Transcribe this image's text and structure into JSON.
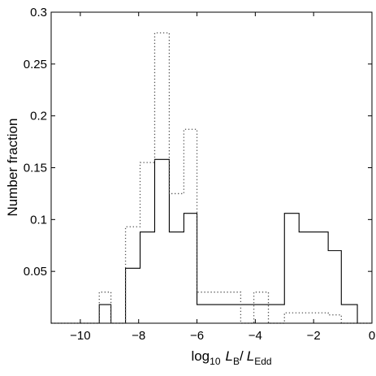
{
  "chart_data": {
    "type": "histogram",
    "xlabel": {
      "prefix": "log",
      "prefix_sub": "10",
      "var1": "L",
      "var1_sub": "B",
      "slash": "/",
      "var2": "L",
      "var2_sub": "Edd"
    },
    "ylabel": "Number fraction",
    "xlim": [
      -11,
      0
    ],
    "ylim": [
      0,
      0.3
    ],
    "xticks": [
      {
        "value": -10,
        "label": "−10"
      },
      {
        "value": -8,
        "label": "−8"
      },
      {
        "value": -6,
        "label": "−6"
      },
      {
        "value": -4,
        "label": "−4"
      },
      {
        "value": -2,
        "label": "−2"
      },
      {
        "value": 0,
        "label": "0"
      }
    ],
    "yticks": [
      {
        "value": 0.05,
        "label": "0.05"
      },
      {
        "value": 0.1,
        "label": "0.1"
      },
      {
        "value": 0.15,
        "label": "0.15"
      },
      {
        "value": 0.2,
        "label": "0.2"
      },
      {
        "value": 0.25,
        "label": "0.25"
      },
      {
        "value": 0.3,
        "label": "0.3"
      }
    ],
    "series": [
      {
        "style": "solid",
        "color": "#000000",
        "edges": [
          -11.0,
          -9.35,
          -8.95,
          -8.45,
          -7.95,
          -7.45,
          -6.95,
          -6.45,
          -6.0,
          -5.5,
          -3.0,
          -2.5,
          -2.0,
          -1.5,
          -1.05,
          -0.5,
          0.0
        ],
        "values": [
          0,
          0.018,
          0,
          0.053,
          0.088,
          0.158,
          0.088,
          0.106,
          0.018,
          0.018,
          0.106,
          0.088,
          0.088,
          0.07,
          0.018,
          0
        ]
      },
      {
        "style": "dotted",
        "color": "#555555",
        "edges": [
          -11.0,
          -9.35,
          -8.95,
          -8.45,
          -7.95,
          -7.45,
          -6.95,
          -6.45,
          -6.0,
          -5.5,
          -4.5,
          -4.05,
          -3.55,
          -3.0,
          -2.5,
          -1.5,
          -1.05,
          -0.5,
          0.0
        ],
        "values": [
          0,
          0.03,
          0,
          0.093,
          0.155,
          0.28,
          0.125,
          0.187,
          0.03,
          0.03,
          0,
          0.03,
          0,
          0.01,
          0.01,
          0.008,
          0,
          0
        ]
      }
    ]
  }
}
